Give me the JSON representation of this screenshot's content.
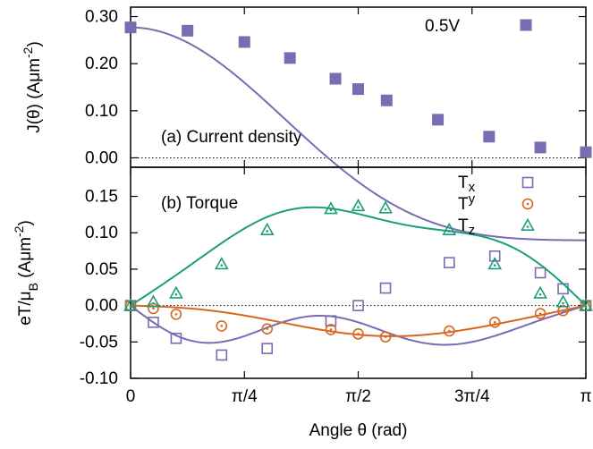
{
  "chart_data": [
    {
      "panel": "top",
      "type": "scatter",
      "annotation": "(a) Current density",
      "ylabel": "J(θ) (Aμm⁻²)",
      "ylabel_parts": [
        "J(θ) (Aμm",
        "-2",
        ")"
      ],
      "ylim": [
        -0.02,
        0.32
      ],
      "yticks": [
        "0.00",
        "0.10",
        "0.20",
        "0.30"
      ],
      "xlim": [
        0,
        3.14159
      ],
      "grid": false,
      "zero_line": "dotted",
      "legend_position": "top-right",
      "series": [
        {
          "name": "0.5V",
          "marker": "filled-square",
          "color": "#7b6bb0",
          "fit": [
            0.277,
            0.226,
            0.051
          ],
          "x": [
            0,
            0.3927,
            0.7854,
            1.0996,
            1.4137,
            1.5708,
            1.7671,
            2.1206,
            2.474,
            2.8274,
            3.1416
          ],
          "y": [
            0.277,
            0.27,
            0.246,
            0.212,
            0.168,
            0.146,
            0.122,
            0.081,
            0.045,
            0.022,
            0.012
          ]
        }
      ]
    },
    {
      "panel": "bottom",
      "type": "scatter",
      "annotation": "(b) Torque",
      "ylabel": "eT/μB (Aμm⁻²)",
      "ylabel_parts": [
        "eT/μ",
        "B",
        " (Aμm",
        "-2",
        ")"
      ],
      "xlabel": "Angle θ (rad)",
      "xticks": [
        "0",
        "π/4",
        "π/2",
        "3π/4",
        "π"
      ],
      "xtick_values": [
        0,
        0.7854,
        1.5708,
        2.3562,
        3.1416
      ],
      "xlim": [
        0,
        3.14159
      ],
      "ylim": [
        -0.1,
        0.19
      ],
      "yticks": [
        "-0.10",
        "-0.05",
        "0.00",
        "0.05",
        "0.10",
        "0.15"
      ],
      "grid": false,
      "zero_line": "dotted",
      "legend_position": "top-right",
      "series": [
        {
          "name": "Tx",
          "name_main": "T",
          "name_sub": "x",
          "marker": "open-square",
          "color": "#7b6bb0",
          "fit": [
            0,
            -0.044,
            0.004,
            -0.021,
            -0.0135
          ],
          "x": [
            0,
            0.1571,
            0.3142,
            0.6283,
            0.9425,
            1.3823,
            1.5708,
            1.7593,
            2.1991,
            2.5133,
            2.8274,
            2.9845,
            3.1416
          ],
          "y": [
            0.0,
            -0.023,
            -0.045,
            -0.068,
            -0.059,
            -0.021,
            0.0,
            0.024,
            0.059,
            0.068,
            0.045,
            0.023,
            0.0
          ]
        },
        {
          "name": "Ty",
          "name_main": "T",
          "name_sub": "y",
          "marker": "open-circle",
          "color": "#d9661f",
          "fit": [
            0,
            -0.036,
            0.009,
            0.004,
            0.0
          ],
          "x": [
            0,
            0.1571,
            0.3142,
            0.6283,
            0.9425,
            1.3823,
            1.5708,
            1.7593,
            2.1991,
            2.5133,
            2.8274,
            2.9845,
            3.1416
          ],
          "y": [
            0.0,
            -0.004,
            -0.012,
            -0.028,
            -0.032,
            -0.033,
            -0.039,
            -0.043,
            -0.035,
            -0.023,
            -0.011,
            -0.007,
            0.0
          ]
        },
        {
          "name": "Tz",
          "name_main": "T",
          "name_sub": "z",
          "marker": "open-triangle",
          "color": "#1c9e7a",
          "fit": [
            0,
            0.135,
            0.004,
            0.009,
            -0.01
          ],
          "x": [
            0,
            0.1571,
            0.3142,
            0.6283,
            0.9425,
            1.3823,
            1.5708,
            1.7593,
            2.1991,
            2.5133,
            2.8274,
            2.9845,
            3.1416
          ],
          "y": [
            0.0,
            0.005,
            0.017,
            0.057,
            0.104,
            0.133,
            0.137,
            0.134,
            0.104,
            0.057,
            0.017,
            0.005,
            0.0
          ]
        }
      ]
    }
  ]
}
